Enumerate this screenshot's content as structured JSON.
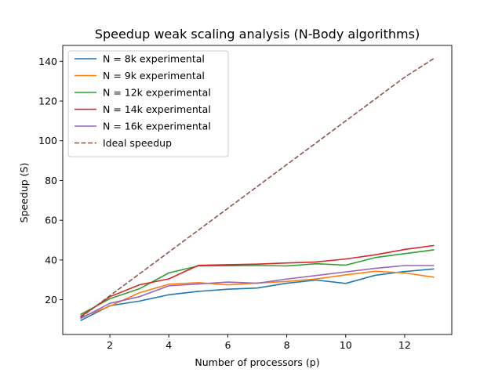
{
  "chart_data": {
    "type": "line",
    "title": "Speedup weak scaling analysis (N-Body algorithms)",
    "xlabel": "Number of processors (p)",
    "ylabel": "Speedup (S)",
    "xlim": [
      0.4,
      13.6
    ],
    "ylim": [
      2.5,
      148
    ],
    "xticks": [
      2,
      4,
      6,
      8,
      10,
      12
    ],
    "yticks": [
      20,
      40,
      60,
      80,
      100,
      120,
      140
    ],
    "grid": false,
    "legend_position": "top-left",
    "x": [
      1,
      2,
      3,
      4,
      5,
      6,
      7,
      8,
      9,
      10,
      11,
      12,
      13
    ],
    "series": [
      {
        "name": "N = 8k experimental",
        "color": "#1f77b4",
        "style": "solid",
        "values": [
          9.5,
          17,
          19.3,
          22.5,
          24.2,
          25.3,
          25.9,
          28.3,
          29.9,
          28.2,
          32.3,
          34.2,
          35.5
        ]
      },
      {
        "name": "N = 9k experimental",
        "color": "#ff7f0e",
        "style": "solid",
        "values": [
          11,
          16.8,
          23.5,
          27.8,
          28.6,
          27.5,
          28.4,
          29.2,
          30.5,
          32.5,
          34.3,
          33.5,
          31.3
        ]
      },
      {
        "name": "N = 12k experimental",
        "color": "#2ca02c",
        "style": "solid",
        "values": [
          12.5,
          20.5,
          25.5,
          33.5,
          37,
          37.1,
          37.2,
          37,
          38.1,
          37.4,
          41.2,
          43.2,
          45.1
        ]
      },
      {
        "name": "N = 14k experimental",
        "color": "#d62728",
        "style": "solid",
        "values": [
          11.5,
          21.5,
          27.5,
          30.5,
          37.3,
          37.6,
          37.9,
          38.5,
          39,
          40.5,
          42.6,
          45.3,
          47.3
        ]
      },
      {
        "name": "N = 16k experimental",
        "color": "#9467bd",
        "style": "solid",
        "values": [
          10.5,
          18.2,
          21.5,
          27,
          27.9,
          28.9,
          28.3,
          30.4,
          32.2,
          34,
          35.8,
          37.2,
          37.2
        ]
      },
      {
        "name": "Ideal speedup",
        "color": "#8c564b",
        "style": "dashed",
        "values": [
          11,
          22,
          33,
          44,
          55,
          66,
          77,
          88,
          99,
          110,
          121,
          132,
          141.5
        ]
      }
    ]
  }
}
